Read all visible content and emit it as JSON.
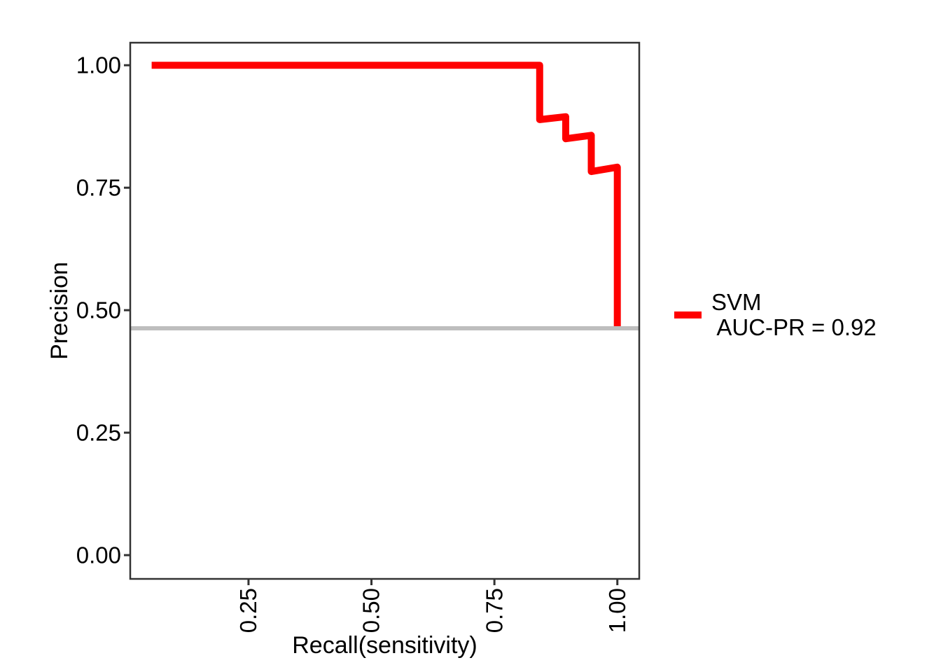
{
  "page": {
    "background": "#ffffff"
  },
  "chart_data": {
    "type": "line",
    "subtype": "precision-recall-step-curve",
    "title": "",
    "xlabel": "Recall(sensitivity)",
    "ylabel": "Precision",
    "xlim": [
      0.0095,
      1.0445
    ],
    "ylim": [
      -0.0485,
      1.046
    ],
    "grid": false,
    "x_ticks": {
      "values": [
        0.25,
        0.5,
        0.75,
        1.0
      ],
      "labels": [
        "0.25",
        "0.50",
        "0.75",
        "1.00"
      ],
      "label_angle_deg": 90
    },
    "y_ticks": {
      "values": [
        0.0,
        0.25,
        0.5,
        0.75,
        1.0
      ],
      "labels": [
        "0.00",
        "0.25",
        "0.50",
        "0.75",
        "1.00"
      ]
    },
    "series": [
      {
        "name": "SVM",
        "metric": "AUC-PR = 0.92",
        "color": "#ff0000",
        "stroke_width": 10,
        "points": [
          [
            0.053,
            1.0
          ],
          [
            0.842,
            1.0
          ],
          [
            0.842,
            0.889
          ],
          [
            0.895,
            0.895
          ],
          [
            0.895,
            0.85
          ],
          [
            0.947,
            0.857
          ],
          [
            0.947,
            0.783
          ],
          [
            1.0,
            0.792
          ],
          [
            1.0,
            0.463
          ]
        ]
      }
    ],
    "baseline": {
      "value": 0.463,
      "color": "#bebebe",
      "stroke_width": 6
    },
    "axis_color": "#333333",
    "text_color": "#000000",
    "legend": {
      "position": "right",
      "label": "SVM\n AUC-PR = 0.92",
      "swatch_color": "#ff0000"
    }
  }
}
